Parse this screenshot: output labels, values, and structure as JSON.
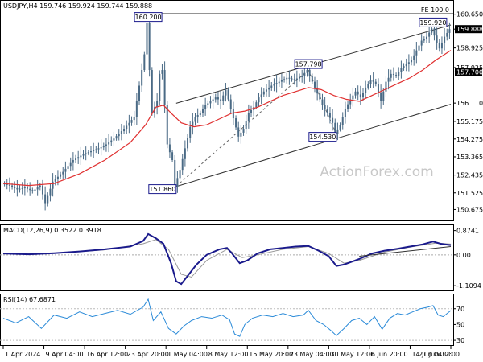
{
  "chart_data": [
    {
      "type": "candlestick",
      "symbol_header": "USDJPY,H4  159.746 159.924 159.744 159.888",
      "ylim": [
        150.2,
        160.8
      ],
      "y_ticks": [
        "160.650",
        "159.888",
        "158.925",
        "157.925",
        "157.700",
        "156.110",
        "155.175",
        "154.275",
        "153.365",
        "152.435",
        "151.525",
        "150.675"
      ],
      "y_tick_values": [
        160.65,
        159.888,
        158.925,
        157.925,
        157.7,
        156.11,
        155.175,
        154.275,
        153.365,
        152.435,
        151.525,
        150.675
      ],
      "current_price": {
        "label": "159.888",
        "value": 159.888,
        "color": "#000000"
      },
      "reference_level": {
        "label": "157.700",
        "value": 157.7,
        "color": "#000000"
      },
      "fibo_label": "FE 100.0",
      "fibo_value": 160.68,
      "price_path": [
        [
          0,
          152.0
        ],
        [
          3,
          151.9
        ],
        [
          6,
          151.7
        ],
        [
          9,
          151.8
        ],
        [
          12,
          151.6
        ],
        [
          15,
          151.9
        ],
        [
          17,
          151.0
        ],
        [
          20,
          152.1
        ],
        [
          24,
          152.6
        ],
        [
          28,
          153.2
        ],
        [
          32,
          153.5
        ],
        [
          36,
          153.7
        ],
        [
          40,
          153.9
        ],
        [
          44,
          154.3
        ],
        [
          48,
          154.8
        ],
        [
          52,
          155.4
        ],
        [
          54,
          157.0
        ],
        [
          56,
          158.6
        ],
        [
          57,
          160.2
        ],
        [
          58,
          157.8
        ],
        [
          59,
          155.6
        ],
        [
          61,
          156.2
        ],
        [
          62,
          157.6
        ],
        [
          63,
          157.8
        ],
        [
          64,
          156.0
        ],
        [
          65,
          154.0
        ],
        [
          67,
          153.2
        ],
        [
          68,
          151.86
        ],
        [
          70,
          152.7
        ],
        [
          72,
          153.8
        ],
        [
          74,
          154.9
        ],
        [
          76,
          155.4
        ],
        [
          78,
          155.6
        ],
        [
          80,
          156.0
        ],
        [
          82,
          156.2
        ],
        [
          84,
          156.4
        ],
        [
          86,
          156.2
        ],
        [
          88,
          156.8
        ],
        [
          90,
          155.8
        ],
        [
          93,
          154.4
        ],
        [
          95,
          154.8
        ],
        [
          97,
          155.6
        ],
        [
          99,
          155.9
        ],
        [
          101,
          156.4
        ],
        [
          103,
          156.7
        ],
        [
          106,
          157.0
        ],
        [
          109,
          157.2
        ],
        [
          112,
          157.4
        ],
        [
          115,
          157.3
        ],
        [
          118,
          157.5
        ],
        [
          120,
          157.798
        ],
        [
          122,
          157.2
        ],
        [
          124,
          156.6
        ],
        [
          126,
          156.0
        ],
        [
          128,
          155.6
        ],
        [
          130,
          155.1
        ],
        [
          131,
          154.53
        ],
        [
          133,
          155.0
        ],
        [
          135,
          155.8
        ],
        [
          137,
          156.3
        ],
        [
          139,
          156.7
        ],
        [
          141,
          156.4
        ],
        [
          143,
          156.9
        ],
        [
          145,
          157.3
        ],
        [
          147,
          157.1
        ],
        [
          149,
          156.2
        ],
        [
          151,
          157.2
        ],
        [
          153,
          157.6
        ],
        [
          155,
          157.5
        ],
        [
          157,
          157.9
        ],
        [
          159,
          158.1
        ],
        [
          161,
          158.3
        ],
        [
          163,
          158.8
        ],
        [
          165,
          159.3
        ],
        [
          167,
          159.5
        ],
        [
          169,
          159.92
        ],
        [
          171,
          159.2
        ],
        [
          172,
          158.9
        ],
        [
          174,
          159.5
        ],
        [
          176,
          159.888
        ]
      ],
      "ma_path": [
        [
          0,
          152.0
        ],
        [
          10,
          151.9
        ],
        [
          20,
          152.0
        ],
        [
          30,
          152.5
        ],
        [
          40,
          153.2
        ],
        [
          50,
          154.1
        ],
        [
          56,
          155.0
        ],
        [
          60,
          155.9
        ],
        [
          63,
          156.0
        ],
        [
          66,
          155.6
        ],
        [
          70,
          155.1
        ],
        [
          75,
          154.9
        ],
        [
          80,
          155.0
        ],
        [
          85,
          155.3
        ],
        [
          90,
          155.6
        ],
        [
          95,
          155.7
        ],
        [
          100,
          155.9
        ],
        [
          105,
          156.2
        ],
        [
          110,
          156.5
        ],
        [
          115,
          156.7
        ],
        [
          120,
          156.9
        ],
        [
          125,
          156.8
        ],
        [
          130,
          156.5
        ],
        [
          135,
          156.3
        ],
        [
          140,
          156.2
        ],
        [
          145,
          156.5
        ],
        [
          150,
          156.8
        ],
        [
          155,
          157.1
        ],
        [
          160,
          157.4
        ],
        [
          165,
          157.8
        ],
        [
          170,
          158.3
        ],
        [
          176,
          158.8
        ]
      ],
      "channel_upper": [
        [
          68,
          156.1
        ],
        [
          176,
          160.1
        ]
      ],
      "channel_lower": [
        [
          68,
          151.85
        ],
        [
          176,
          156.05
        ]
      ],
      "dashed_links": [
        [
          [
            68,
            151.86
          ],
          [
            120,
            157.798
          ]
        ],
        [
          [
            120,
            157.798
          ],
          [
            131,
            154.53
          ]
        ]
      ],
      "annotations": [
        {
          "text": "160.200",
          "x": 57,
          "y": 160.2
        },
        {
          "text": "151.860",
          "x": 68,
          "y": 151.86
        },
        {
          "text": "157.798",
          "x": 120,
          "y": 157.798
        },
        {
          "text": "154.530",
          "x": 131,
          "y": 154.53
        },
        {
          "text": "159.920",
          "x": 169,
          "y": 159.92
        }
      ],
      "watermark": "ActionForex.com",
      "colors": {
        "candles": "#4a6a85",
        "ma": "#e03030",
        "channel": "#333333",
        "label_border": "#1a1a8c"
      }
    },
    {
      "type": "line",
      "name": "MACD(12,26,9) 0.3522 0.3918",
      "ylim": [
        -1.25,
        0.95
      ],
      "y_ticks": [
        "0.8741",
        "0.00",
        "-1.1094"
      ],
      "y_tick_values": [
        0.8741,
        0.0,
        -1.1094
      ],
      "series": [
        {
          "name": "macd",
          "color": "#1a1a8c",
          "values": [
            [
              0,
              0.05
            ],
            [
              10,
              0.02
            ],
            [
              20,
              0.06
            ],
            [
              30,
              0.12
            ],
            [
              40,
              0.2
            ],
            [
              50,
              0.3
            ],
            [
              55,
              0.5
            ],
            [
              57,
              0.75
            ],
            [
              60,
              0.6
            ],
            [
              63,
              0.4
            ],
            [
              66,
              -0.3
            ],
            [
              68,
              -0.95
            ],
            [
              70,
              -1.05
            ],
            [
              73,
              -0.7
            ],
            [
              76,
              -0.35
            ],
            [
              80,
              0.0
            ],
            [
              85,
              0.2
            ],
            [
              88,
              0.25
            ],
            [
              90,
              0.05
            ],
            [
              93,
              -0.3
            ],
            [
              96,
              -0.2
            ],
            [
              100,
              0.05
            ],
            [
              105,
              0.2
            ],
            [
              110,
              0.25
            ],
            [
              115,
              0.3
            ],
            [
              120,
              0.32
            ],
            [
              124,
              0.15
            ],
            [
              128,
              -0.05
            ],
            [
              131,
              -0.4
            ],
            [
              134,
              -0.35
            ],
            [
              137,
              -0.25
            ],
            [
              140,
              -0.15
            ],
            [
              145,
              0.05
            ],
            [
              150,
              0.15
            ],
            [
              155,
              0.22
            ],
            [
              160,
              0.3
            ],
            [
              165,
              0.38
            ],
            [
              169,
              0.48
            ],
            [
              172,
              0.4
            ],
            [
              176,
              0.35
            ]
          ]
        },
        {
          "name": "signal",
          "color": "#999999",
          "values": [
            [
              0,
              0.04
            ],
            [
              20,
              0.05
            ],
            [
              40,
              0.18
            ],
            [
              55,
              0.4
            ],
            [
              60,
              0.55
            ],
            [
              65,
              0.2
            ],
            [
              70,
              -0.7
            ],
            [
              74,
              -0.8
            ],
            [
              80,
              -0.2
            ],
            [
              88,
              0.2
            ],
            [
              94,
              -0.1
            ],
            [
              100,
              0.0
            ],
            [
              110,
              0.2
            ],
            [
              120,
              0.3
            ],
            [
              128,
              0.05
            ],
            [
              134,
              -0.3
            ],
            [
              140,
              -0.2
            ],
            [
              150,
              0.1
            ],
            [
              160,
              0.28
            ],
            [
              170,
              0.42
            ],
            [
              176,
              0.39
            ]
          ]
        }
      ],
      "trendline": [
        [
          140,
          -0.05
        ],
        [
          176,
          0.3
        ]
      ]
    },
    {
      "type": "line",
      "name": "RSI(14) 67.6871",
      "ylim": [
        25,
        85
      ],
      "y_ticks": [
        "70",
        "50",
        "30"
      ],
      "y_tick_values": [
        70,
        50,
        30
      ],
      "series": [
        {
          "name": "rsi",
          "color": "#2a8ad8",
          "values": [
            [
              0,
              58
            ],
            [
              5,
              52
            ],
            [
              10,
              60
            ],
            [
              15,
              45
            ],
            [
              20,
              62
            ],
            [
              25,
              58
            ],
            [
              30,
              66
            ],
            [
              35,
              60
            ],
            [
              40,
              64
            ],
            [
              45,
              68
            ],
            [
              50,
              63
            ],
            [
              55,
              72
            ],
            [
              57,
              82
            ],
            [
              59,
              55
            ],
            [
              62,
              66
            ],
            [
              65,
              45
            ],
            [
              68,
              38
            ],
            [
              71,
              48
            ],
            [
              74,
              55
            ],
            [
              78,
              60
            ],
            [
              82,
              58
            ],
            [
              86,
              62
            ],
            [
              89,
              56
            ],
            [
              91,
              38
            ],
            [
              93,
              35
            ],
            [
              95,
              50
            ],
            [
              98,
              58
            ],
            [
              102,
              62
            ],
            [
              106,
              60
            ],
            [
              110,
              64
            ],
            [
              114,
              60
            ],
            [
              118,
              62
            ],
            [
              120,
              68
            ],
            [
              123,
              55
            ],
            [
              126,
              50
            ],
            [
              129,
              42
            ],
            [
              131,
              36
            ],
            [
              134,
              45
            ],
            [
              137,
              55
            ],
            [
              140,
              58
            ],
            [
              143,
              50
            ],
            [
              146,
              60
            ],
            [
              149,
              44
            ],
            [
              152,
              58
            ],
            [
              155,
              64
            ],
            [
              158,
              62
            ],
            [
              161,
              66
            ],
            [
              164,
              70
            ],
            [
              167,
              72
            ],
            [
              169,
              74
            ],
            [
              171,
              62
            ],
            [
              173,
              60
            ],
            [
              176,
              67.69
            ]
          ]
        }
      ]
    }
  ],
  "x_ticks": [
    {
      "label": "1 Apr 2024",
      "x": 0
    },
    {
      "label": "9 Apr 04:00",
      "x": 16
    },
    {
      "label": "16 Apr 12:00",
      "x": 32
    },
    {
      "label": "23 Apr 20:00",
      "x": 48
    },
    {
      "label": "1 May 04:00",
      "x": 64
    },
    {
      "label": "8 May 12:00",
      "x": 80
    },
    {
      "label": "15 May 20:00",
      "x": 96
    },
    {
      "label": "23 May 04:00",
      "x": 112
    },
    {
      "label": "30 May 12:00",
      "x": 128
    },
    {
      "label": "6 Jun 20:00",
      "x": 144
    },
    {
      "label": "14 Jun 04:00",
      "x": 160
    },
    {
      "label": "21 Jun 12:00",
      "x": 176
    }
  ]
}
